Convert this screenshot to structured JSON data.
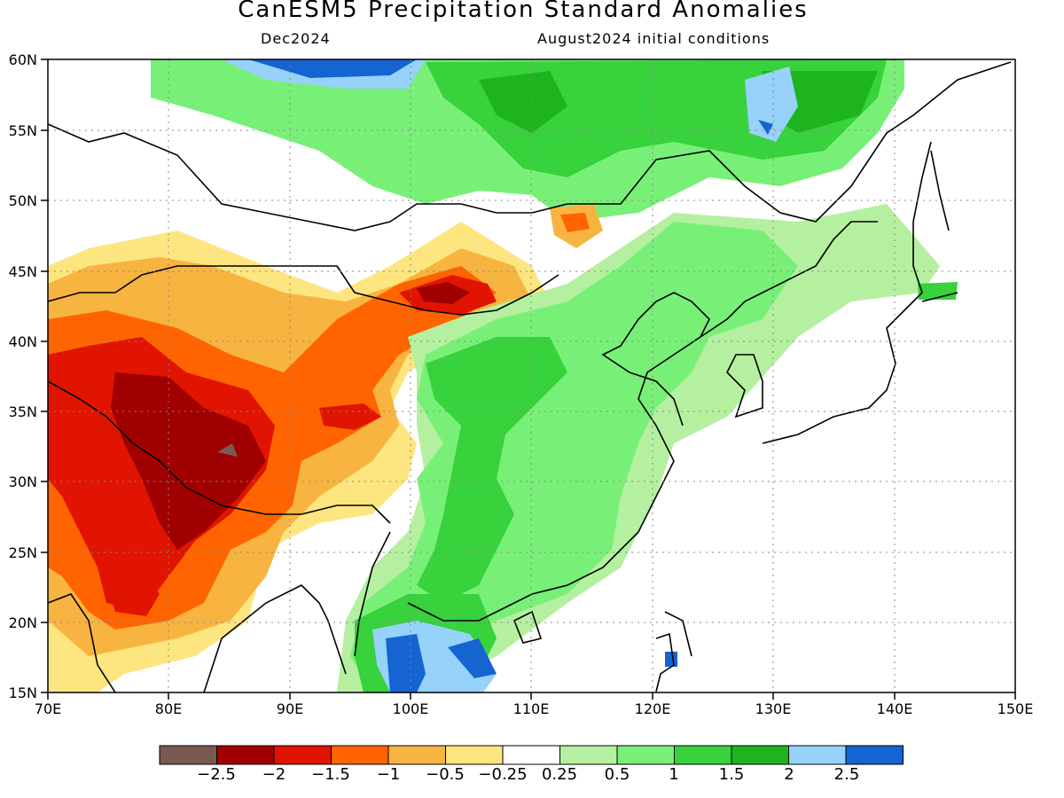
{
  "header": {
    "title": "CanESM5 Precipitation Standard Anomalies",
    "month": "Dec2024",
    "init": "August2024 initial conditions"
  },
  "axes": {
    "lat_labels": [
      "60N",
      "55N",
      "50N",
      "45N",
      "40N",
      "35N",
      "30N",
      "25N",
      "20N",
      "15N"
    ],
    "lon_labels": [
      "70E",
      "80E",
      "90E",
      "100E",
      "110E",
      "120E",
      "130E",
      "140E",
      "150E"
    ],
    "lon_range": [
      70,
      150
    ],
    "lat_range": [
      15,
      60
    ],
    "grid": "dotted"
  },
  "colorbar": {
    "colors": [
      "#7a5a50",
      "#a00000",
      "#e01400",
      "#ff6400",
      "#f8b440",
      "#fde680",
      "#ffffff",
      "#b4f0a0",
      "#78f078",
      "#37d23c",
      "#1eb41e",
      "#96d2fa",
      "#1464d2"
    ],
    "labels": [
      "−2.5",
      "−2",
      "−1.5",
      "−1",
      "−0.5",
      "−0.25",
      "0.25",
      "0.5",
      "1",
      "1.5",
      "2",
      "2.5"
    ]
  }
}
